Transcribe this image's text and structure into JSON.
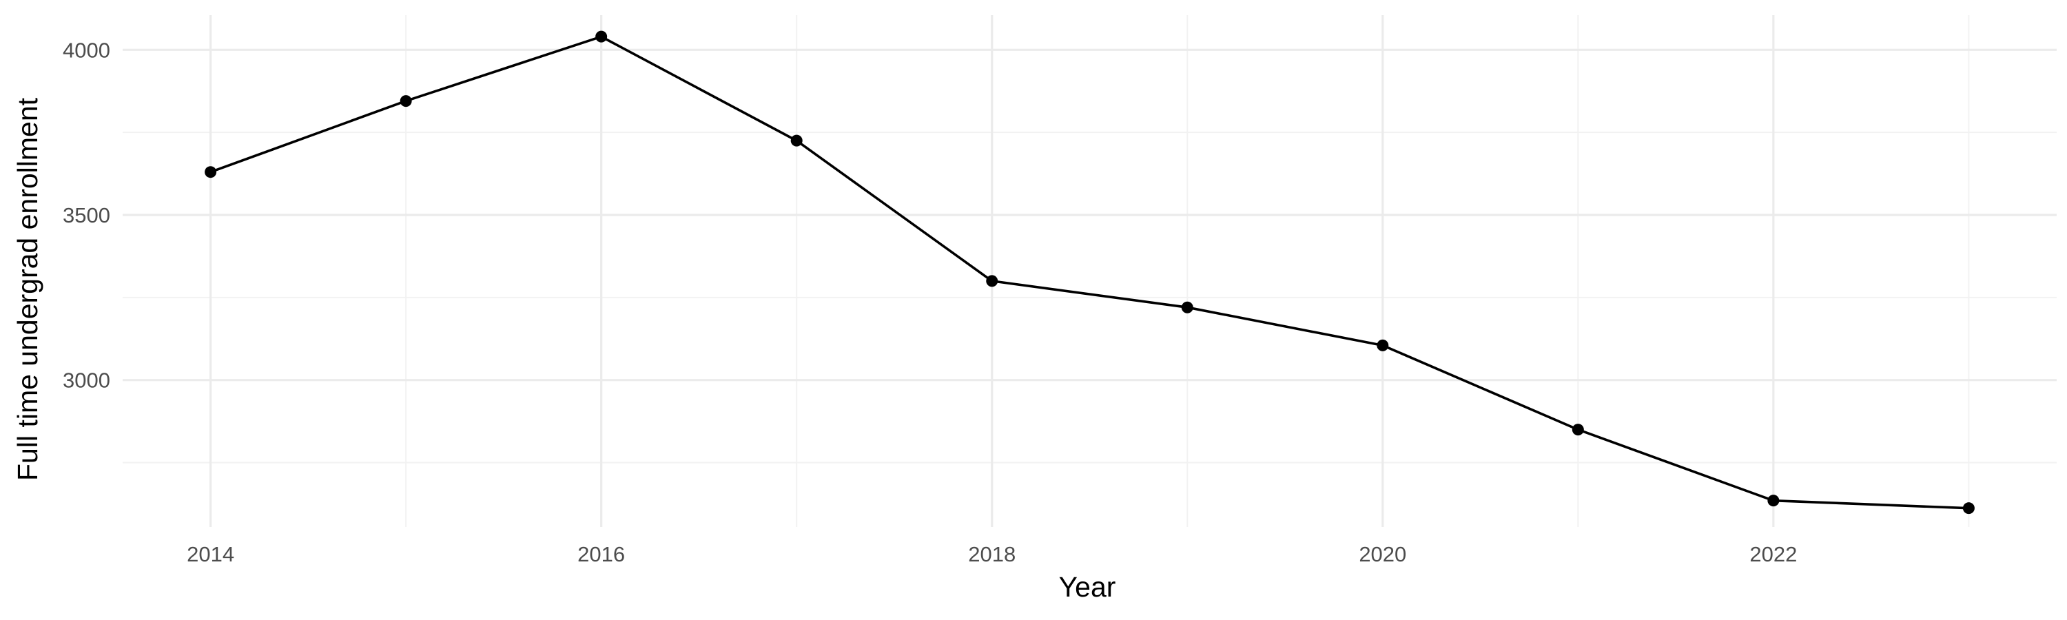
{
  "chart_data": {
    "type": "line",
    "title": "",
    "xlabel": "Year",
    "ylabel": "Full time undergrad enrollment",
    "x": [
      2014,
      2015,
      2016,
      2017,
      2018,
      2019,
      2020,
      2021,
      2022,
      2023
    ],
    "series": [
      {
        "values": [
          3630,
          3845,
          4040,
          3725,
          3300,
          3220,
          3105,
          2850,
          2635,
          2612
        ]
      }
    ],
    "xlim": [
      2013.55,
      2023.45
    ],
    "ylim": [
      2555,
      4105
    ],
    "x_ticks": [
      2014,
      2016,
      2018,
      2020,
      2022
    ],
    "x_tick_labels": [
      "2014",
      "2016",
      "2018",
      "2020",
      "2022"
    ],
    "y_ticks": [
      3000,
      3500,
      4000
    ],
    "y_tick_labels": [
      "3000",
      "3500",
      "4000"
    ],
    "grid": true,
    "legend": "none",
    "colors": {
      "line": "#000000",
      "point": "#000000",
      "grid_major": "#ebebeb",
      "grid_minor": "#f2f2f2",
      "tick_text": "#4d4d4d",
      "background": "#ffffff"
    }
  }
}
